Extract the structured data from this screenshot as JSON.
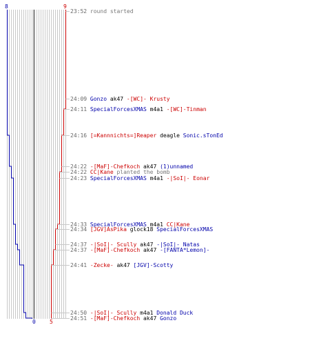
{
  "colors": {
    "blue": "#0000aa",
    "red": "#cc0000",
    "gray": "#777777",
    "black": "#000000",
    "time": "#666666",
    "grid": "#c8c8c8",
    "center": "#777777"
  },
  "scores": {
    "blue_start": "8",
    "red_start": "9",
    "blue_end": "0",
    "red_end": "5"
  },
  "log": [
    {
      "time": "23:52",
      "parts": [
        {
          "text": "round started",
          "color": "gray"
        }
      ]
    },
    {
      "time": "24:09",
      "parts": [
        {
          "text": "Gonzo",
          "color": "blue"
        },
        {
          "text": " ak47 ",
          "color": "black"
        },
        {
          "text": "-[WC]- Krusty",
          "color": "red"
        }
      ]
    },
    {
      "time": "24:11",
      "parts": [
        {
          "text": "SpecialForcesXMAS",
          "color": "blue"
        },
        {
          "text": " m4a1 ",
          "color": "black"
        },
        {
          "text": "-[WC]-Tinman",
          "color": "red"
        }
      ]
    },
    {
      "time": "24:16",
      "parts": [
        {
          "text": "[=Kannnichts=]Reaper",
          "color": "red"
        },
        {
          "text": " deagle ",
          "color": "black"
        },
        {
          "text": "Sonic.sTonEd",
          "color": "blue"
        }
      ]
    },
    {
      "time": "24:22",
      "parts": [
        {
          "text": "-[MaF]-Chefkoch",
          "color": "red"
        },
        {
          "text": " ak47 ",
          "color": "black"
        },
        {
          "text": "(1)unnamed",
          "color": "blue"
        }
      ]
    },
    {
      "time": "24:22",
      "parts": [
        {
          "text": "CC|Kane",
          "color": "red"
        },
        {
          "text": " planted the bomb",
          "color": "gray"
        }
      ]
    },
    {
      "time": "24:23",
      "parts": [
        {
          "text": "SpecialForcesXMAS",
          "color": "blue"
        },
        {
          "text": " m4a1 ",
          "color": "black"
        },
        {
          "text": "-|SoI|- Eonar",
          "color": "red"
        }
      ]
    },
    {
      "time": "24:33",
      "parts": [
        {
          "text": "SpecialForcesXMAS",
          "color": "blue"
        },
        {
          "text": " m4a1 ",
          "color": "black"
        },
        {
          "text": "CC|Kane",
          "color": "red"
        }
      ]
    },
    {
      "time": "24:34",
      "parts": [
        {
          "text": "[JGV]AsPika",
          "color": "red"
        },
        {
          "text": " glock18 ",
          "color": "black"
        },
        {
          "text": "SpecialForcesXMAS",
          "color": "blue"
        }
      ]
    },
    {
      "time": "24:37",
      "parts": [
        {
          "text": "-|SoI|- Scully",
          "color": "red"
        },
        {
          "text": " ak47 ",
          "color": "black"
        },
        {
          "text": "-|SoI|- Natas",
          "color": "blue"
        }
      ]
    },
    {
      "time": "24:37",
      "parts": [
        {
          "text": "-[MaF]-Chefkoch",
          "color": "red"
        },
        {
          "text": " ak47 ",
          "color": "black"
        },
        {
          "text": "-[FANTA*Lemon]-",
          "color": "blue"
        }
      ]
    },
    {
      "time": "24:41",
      "parts": [
        {
          "text": "-Zecke-",
          "color": "red"
        },
        {
          "text": " ak47 ",
          "color": "black"
        },
        {
          "text": "[JGV]-Scotty",
          "color": "blue"
        }
      ]
    },
    {
      "time": "24:50",
      "parts": [
        {
          "text": "-|SoI|- Scully",
          "color": "red"
        },
        {
          "text": " m4a1 ",
          "color": "black"
        },
        {
          "text": "Donald Duck",
          "color": "blue"
        }
      ]
    },
    {
      "time": "24:51",
      "parts": [
        {
          "text": "-[MaF]-Chefkoch",
          "color": "red"
        },
        {
          "text": " ak47 ",
          "color": "black"
        },
        {
          "text": "Gonzo",
          "color": "blue"
        }
      ]
    }
  ]
}
